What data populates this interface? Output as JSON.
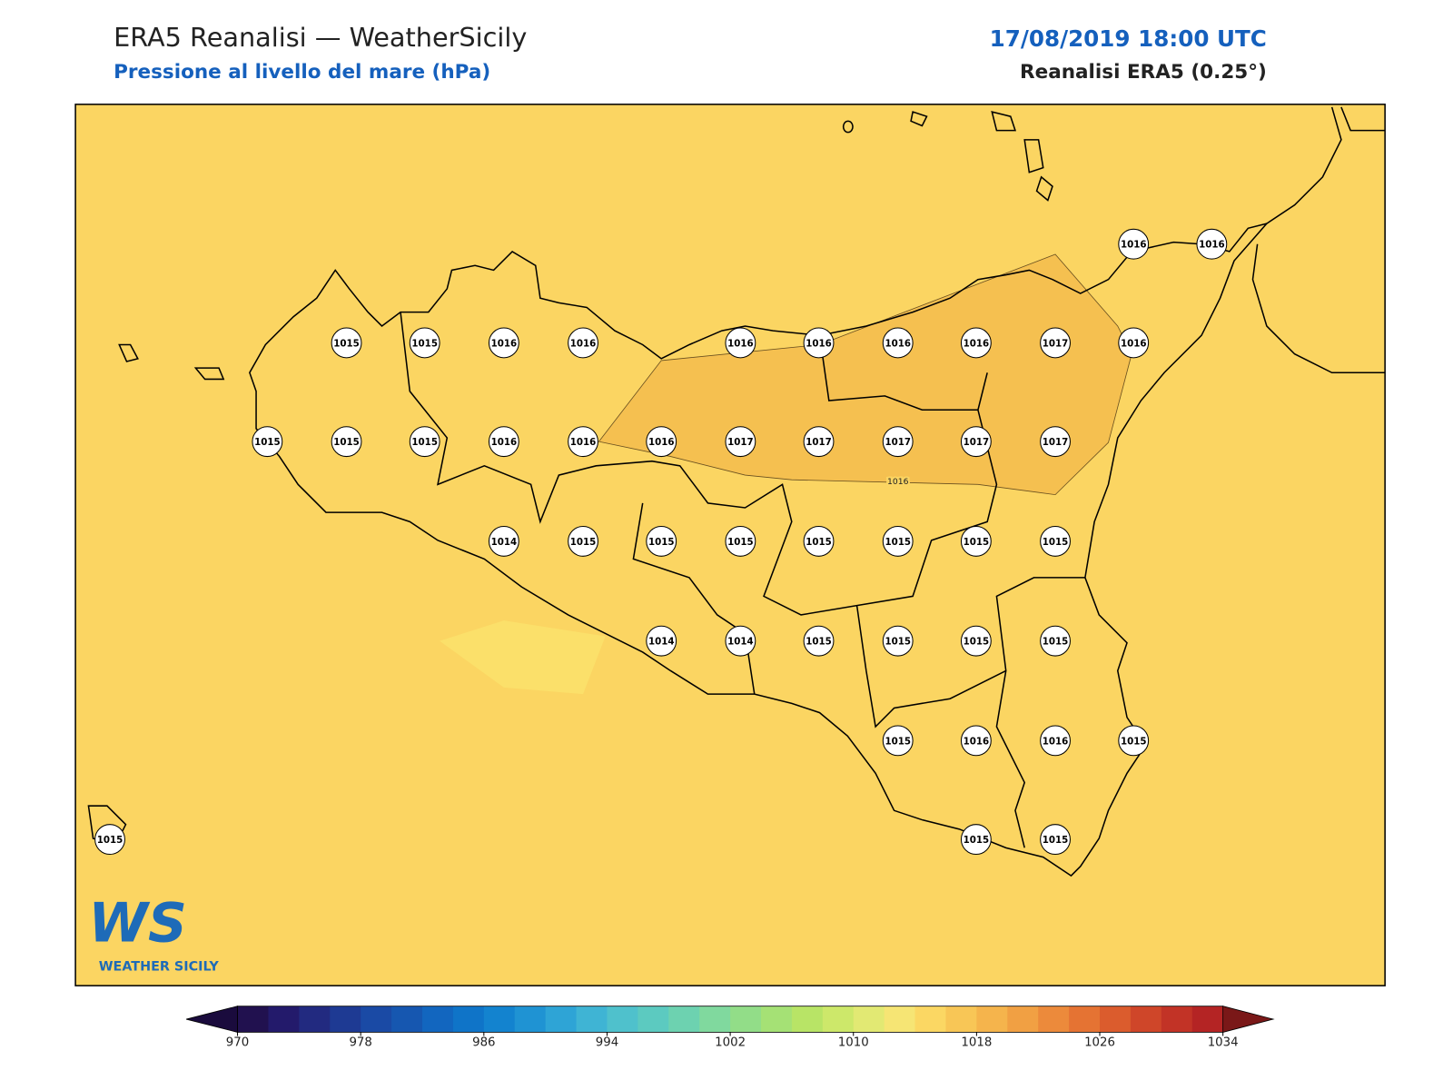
{
  "header": {
    "title": "ERA5 Reanalisi — WeatherSicily",
    "subtitle": "Pressione al livello del mare (hPa)",
    "date": "17/08/2019 18:00 UTC",
    "source": "Reanalisi ERA5 (0.25°)"
  },
  "map": {
    "background": "#fbd562",
    "contour_label": "1016",
    "high_region_color": "#f5c050",
    "low_region_color": "#fbe06a",
    "stations": [
      1016,
      1016,
      1015,
      1015,
      1016,
      1016,
      1016,
      1016,
      1016,
      1016,
      1017,
      1016,
      1015,
      1015,
      1015,
      1016,
      1016,
      1016,
      1017,
      1017,
      1017,
      1017,
      1017,
      1014,
      1015,
      1015,
      1015,
      1015,
      1015,
      1015,
      1015,
      1014,
      1014,
      1015,
      1015,
      1015,
      1015,
      1015,
      1016,
      1016,
      1015,
      1015,
      1015,
      1015
    ]
  },
  "logo": {
    "mark": "WS",
    "text": "WEATHER SICILY"
  },
  "colorbar": {
    "lim": [
      970,
      1034
    ],
    "ticks": [
      970,
      978,
      986,
      994,
      1002,
      1010,
      1018,
      1026,
      1034
    ],
    "colors": [
      "#21114f",
      "#231a6b",
      "#222a80",
      "#1e3a93",
      "#1a4aa5",
      "#1657b0",
      "#1266bf",
      "#0f74c8",
      "#1383cf",
      "#1f93d3",
      "#2ea4d6",
      "#3fb4d4",
      "#4fc1cc",
      "#5ccac0",
      "#6dd2b0",
      "#80d99e",
      "#92dd88",
      "#a5e175",
      "#b8e466",
      "#cde86a",
      "#e2e973",
      "#f6e574",
      "#fbd763",
      "#f8c656",
      "#f5b44c",
      "#f1a043",
      "#ec8a3b",
      "#e57333",
      "#db5c2d",
      "#cf4629",
      "#c23326",
      "#b42424"
    ],
    "extend_colors": [
      "#1a0b3d",
      "#7a1818"
    ]
  }
}
